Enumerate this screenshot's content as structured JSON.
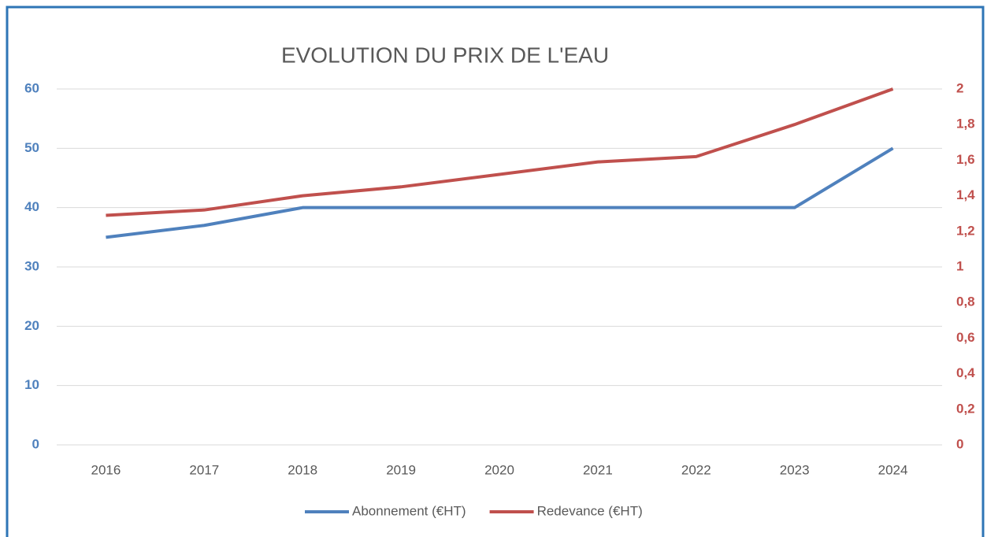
{
  "chart_data": {
    "type": "line",
    "title": "EVOLUTION DU PRIX DE L'EAU",
    "categories": [
      "2016",
      "2017",
      "2018",
      "2019",
      "2020",
      "2021",
      "2022",
      "2023",
      "2024"
    ],
    "series": [
      {
        "name": "Abonnement (€HT)",
        "color": "#4f81bd",
        "values": [
          35,
          37,
          40,
          40,
          40,
          40,
          40,
          40,
          50
        ]
      },
      {
        "name": "Redevance (€HT)",
        "color": "#c0504d",
        "axis": "y2",
        "values": [
          1.29,
          1.32,
          1.4,
          1.45,
          1.52,
          1.59,
          1.62,
          1.8,
          2
        ]
      }
    ],
    "ylim": [
      0,
      60
    ],
    "yticks": [
      0,
      10,
      20,
      30,
      40,
      50,
      60
    ],
    "y2lim": [
      0,
      2
    ],
    "y2ticks": [
      0,
      {
        "value": 0.2,
        "label": "0,2"
      },
      {
        "value": 0.4,
        "label": "0,4"
      },
      {
        "value": 0.6,
        "label": "0,6"
      },
      {
        "value": 0.8,
        "label": "0,8"
      },
      1,
      {
        "value": 1.2,
        "label": "1,2"
      },
      {
        "value": 1.4,
        "label": "1,4"
      },
      {
        "value": 1.6,
        "label": "1,6"
      },
      {
        "value": 1.8,
        "label": "1,8"
      },
      2
    ],
    "grid": true,
    "legend": "bottom"
  }
}
